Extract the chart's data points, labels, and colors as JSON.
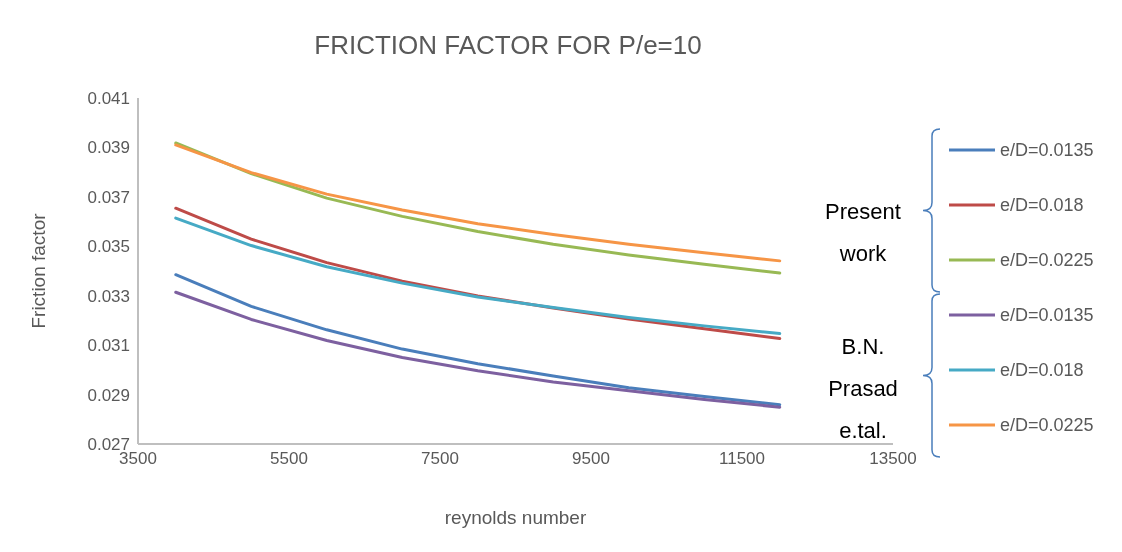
{
  "chart_data": {
    "type": "line",
    "title": "FRICTION FACTOR FOR P/e=10",
    "xlabel": "reynolds number",
    "ylabel": "Friction factor",
    "x": [
      4000,
      5000,
      6000,
      7000,
      8000,
      9000,
      10000,
      11000,
      12000
    ],
    "series": [
      {
        "name": "e/D=0.0135",
        "color": "#4a7ebb",
        "values": [
          0.03385,
          0.03257,
          0.03162,
          0.03084,
          0.03025,
          0.02975,
          0.02928,
          0.02892,
          0.02859
        ]
      },
      {
        "name": "e/D=0.018",
        "color": "#be4b48",
        "values": [
          0.03654,
          0.03529,
          0.03434,
          0.03359,
          0.03299,
          0.0325,
          0.03206,
          0.03166,
          0.03127
        ]
      },
      {
        "name": "e/D=0.0225",
        "color": "#98b954",
        "values": [
          0.03918,
          0.03794,
          0.03695,
          0.03621,
          0.0356,
          0.03508,
          0.03465,
          0.03427,
          0.03392
        ]
      },
      {
        "name": "e/D=0.0135",
        "color": "#7d60a0",
        "values": [
          0.03314,
          0.03204,
          0.03119,
          0.0305,
          0.02996,
          0.02951,
          0.02915,
          0.0288,
          0.02849
        ]
      },
      {
        "name": "e/D=0.018",
        "color": "#46aac5",
        "values": [
          0.03614,
          0.03503,
          0.03417,
          0.03351,
          0.03295,
          0.03252,
          0.03212,
          0.03178,
          0.03147
        ]
      },
      {
        "name": "e/D=0.0225",
        "color": "#f69546",
        "values": [
          0.0391,
          0.03798,
          0.03711,
          0.03647,
          0.03591,
          0.03548,
          0.03508,
          0.03474,
          0.03441
        ]
      }
    ],
    "annotations": [
      "Present work",
      "B.N. Prasad e.tal."
    ],
    "xlim": [
      3500,
      13500
    ],
    "xticks": [
      3500,
      5500,
      7500,
      9500,
      11500,
      13500
    ],
    "ylim": [
      0.027,
      0.041
    ],
    "yticks": [
      0.027,
      0.029,
      0.031,
      0.033,
      0.035,
      0.037,
      0.039,
      0.041
    ],
    "legend": "right",
    "marker": "none",
    "line_style": "solid"
  }
}
